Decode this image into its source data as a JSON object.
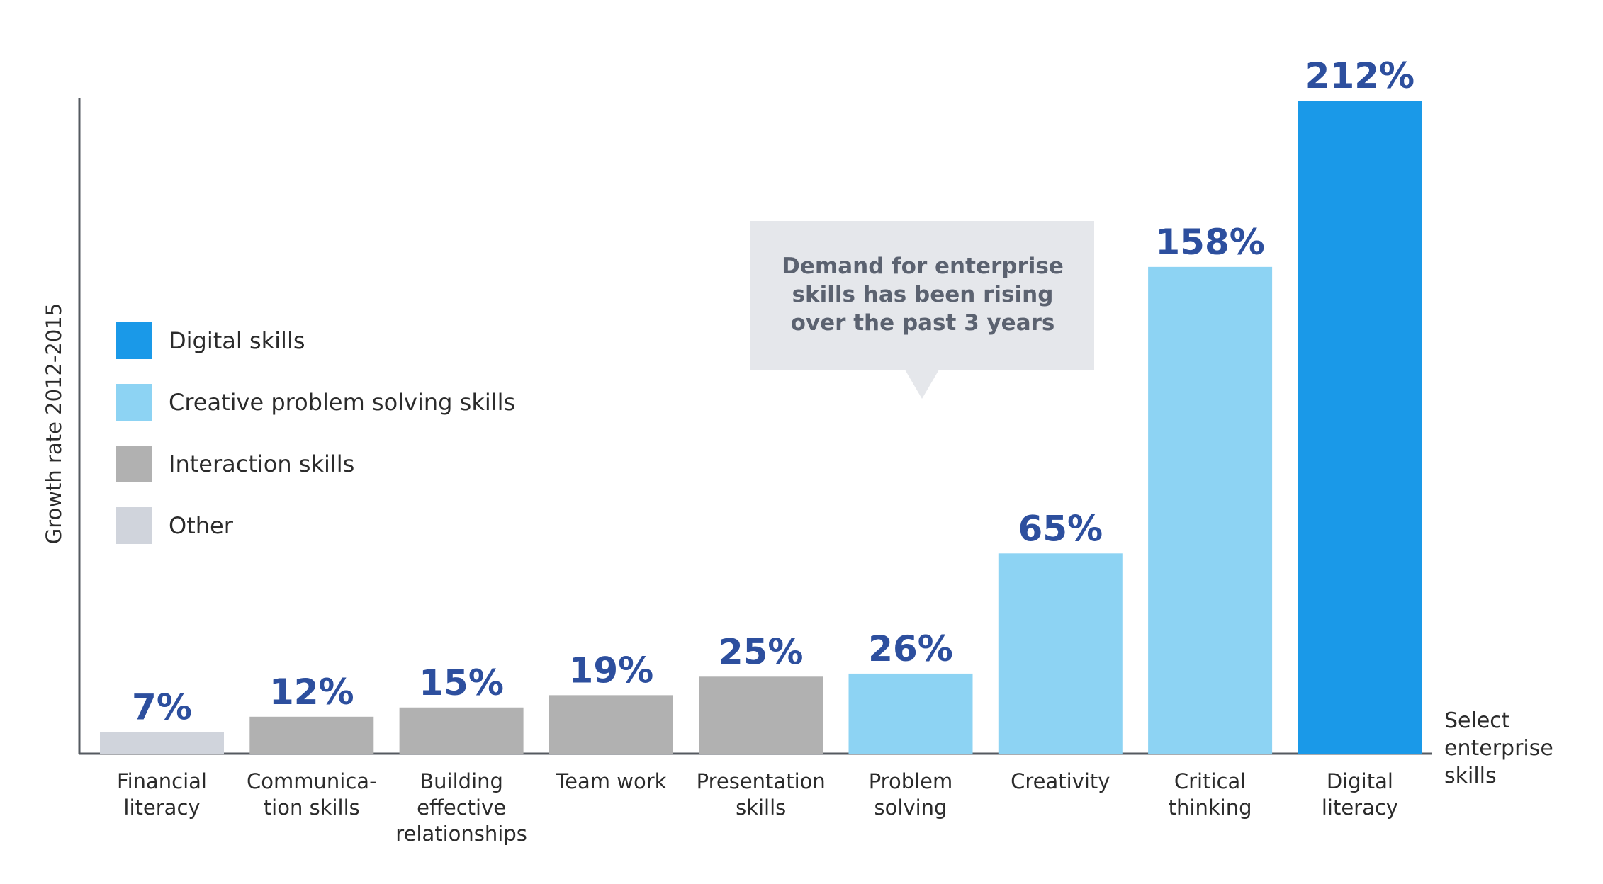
{
  "chart_data": {
    "type": "bar",
    "title": "",
    "ylabel": "Growth rate 2012-2015",
    "xlabel": "Select enterprise skills",
    "xlabel_lines": [
      "Select",
      "enterprise",
      "skills"
    ],
    "ylim": [
      0,
      212
    ],
    "grid": false,
    "legend_position": "left",
    "categories": [
      {
        "label": [
          "Financial",
          "literacy"
        ],
        "value": 7,
        "value_label": "7%",
        "group": "Other"
      },
      {
        "label": [
          "Communica-",
          "tion skills"
        ],
        "value": 12,
        "value_label": "12%",
        "group": "Interaction skills"
      },
      {
        "label": [
          "Building",
          "effective",
          "relationships"
        ],
        "value": 15,
        "value_label": "15%",
        "group": "Interaction skills"
      },
      {
        "label": [
          "Team work"
        ],
        "value": 19,
        "value_label": "19%",
        "group": "Interaction skills"
      },
      {
        "label": [
          "Presentation",
          "skills"
        ],
        "value": 25,
        "value_label": "25%",
        "group": "Interaction skills"
      },
      {
        "label": [
          "Problem",
          "solving"
        ],
        "value": 26,
        "value_label": "26%",
        "group": "Creative problem solving skills"
      },
      {
        "label": [
          "Creativity"
        ],
        "value": 65,
        "value_label": "65%",
        "group": "Creative problem solving skills"
      },
      {
        "label": [
          "Critical",
          "thinking"
        ],
        "value": 158,
        "value_label": "158%",
        "group": "Creative problem solving skills"
      },
      {
        "label": [
          "Digital",
          "literacy"
        ],
        "value": 212,
        "value_label": "212%",
        "group": "Digital skills"
      }
    ],
    "legend": [
      {
        "name": "Digital skills",
        "color": "#1a99e8"
      },
      {
        "name": "Creative problem solving skills",
        "color": "#8dd3f3"
      },
      {
        "name": "Interaction skills",
        "color": "#b1b1b1"
      },
      {
        "name": "Other",
        "color": "#d0d4dc"
      }
    ],
    "annotation": {
      "lines": [
        "Demand for enterprise",
        "skills has been rising",
        "over the past 3 years"
      ]
    },
    "colors": {
      "value_label": "#2d4f9e",
      "axis": "#555a60",
      "text": "#2b2b2b",
      "callout_bg": "#e5e7eb",
      "callout_text": "#5b6270"
    }
  }
}
